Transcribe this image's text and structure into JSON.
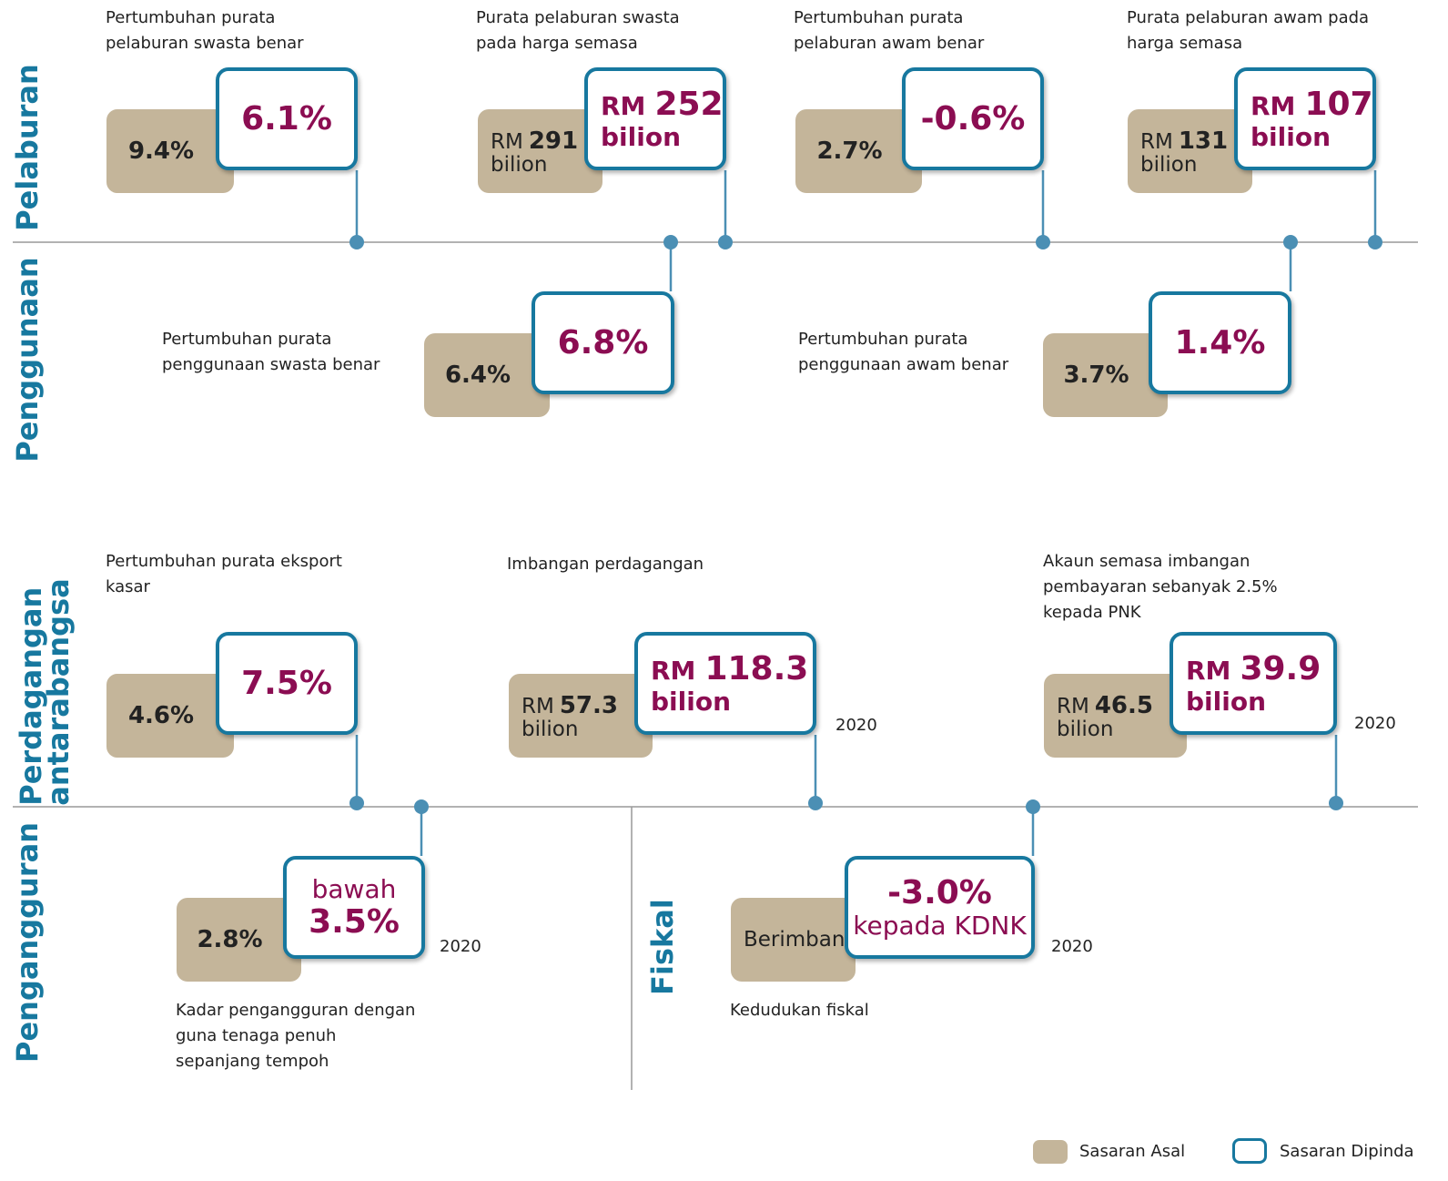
{
  "sections": [
    {
      "label": [
        "Pelaburan"
      ],
      "items": [
        {
          "caption": [
            "Pertumbuhan purata",
            "pelaburan swasta benar"
          ],
          "original": {
            "value": "9.4%"
          },
          "revised": {
            "value": "6.1%"
          }
        },
        {
          "caption": [
            "Purata pelaburan swasta",
            "pada harga semasa"
          ],
          "original": {
            "prefix": "RM",
            "value": "291",
            "suffix": "bilion"
          },
          "revised": {
            "prefix": "RM",
            "value": "252",
            "suffix": "bilion"
          }
        },
        {
          "caption": [
            "Pertumbuhan purata",
            "pelaburan awam benar"
          ],
          "original": {
            "value": "2.7%"
          },
          "revised": {
            "value": "-0.6%"
          }
        },
        {
          "caption": [
            "Purata pelaburan awam pada",
            "harga semasa"
          ],
          "original": {
            "prefix": "RM",
            "value": "131",
            "suffix": "bilion"
          },
          "revised": {
            "prefix": "RM",
            "value": "107",
            "suffix": "bilion"
          }
        }
      ]
    },
    {
      "label": [
        "Penggunaan"
      ],
      "items": [
        {
          "caption": [
            "Pertumbuhan purata",
            "penggunaan swasta benar"
          ],
          "original": {
            "value": "6.4%"
          },
          "revised": {
            "value": "6.8%"
          }
        },
        {
          "caption": [
            "Pertumbuhan purata",
            "penggunaan awam benar"
          ],
          "original": {
            "value": "3.7%"
          },
          "revised": {
            "value": "1.4%"
          }
        }
      ]
    },
    {
      "label": [
        "Perdagangan",
        "antarabangsa"
      ],
      "items": [
        {
          "caption": [
            "Pertumbuhan purata eksport",
            "kasar"
          ],
          "original": {
            "value": "4.6%"
          },
          "revised": {
            "value": "7.5%"
          }
        },
        {
          "caption": [
            "Imbangan perdagangan"
          ],
          "original": {
            "prefix": "RM",
            "value": "57.3",
            "suffix": "bilion"
          },
          "revised": {
            "prefix": "RM",
            "value": "118.3",
            "suffix": "bilion"
          },
          "year": "2020"
        },
        {
          "caption": [
            "Akaun semasa imbangan",
            "pembayaran sebanyak 2.5%",
            "kepada PNK"
          ],
          "original": {
            "prefix": "RM",
            "value": "46.5",
            "suffix": "bilion"
          },
          "revised": {
            "prefix": "RM",
            "value": "39.9",
            "suffix": "bilion"
          },
          "year": "2020"
        }
      ]
    },
    {
      "label": [
        "Pengangguran"
      ],
      "items": [
        {
          "caption": [
            "Kadar pengangguran dengan",
            "guna tenaga penuh",
            "sepanjang tempoh"
          ],
          "original": {
            "value": "2.8%"
          },
          "revised": {
            "prefix": "bawah",
            "value": "3.5%"
          },
          "year": "2020"
        }
      ]
    },
    {
      "label": [
        "Fiskal"
      ],
      "items": [
        {
          "caption": [
            "Kedudukan fiskal"
          ],
          "original": {
            "text": "Berimbang"
          },
          "revised": {
            "value": "-3.0%",
            "suffix": "kepada KDNK"
          },
          "year": "2020"
        }
      ]
    }
  ],
  "legend": {
    "original": "Sasaran Asal",
    "revised": "Sasaran Dipinda"
  }
}
